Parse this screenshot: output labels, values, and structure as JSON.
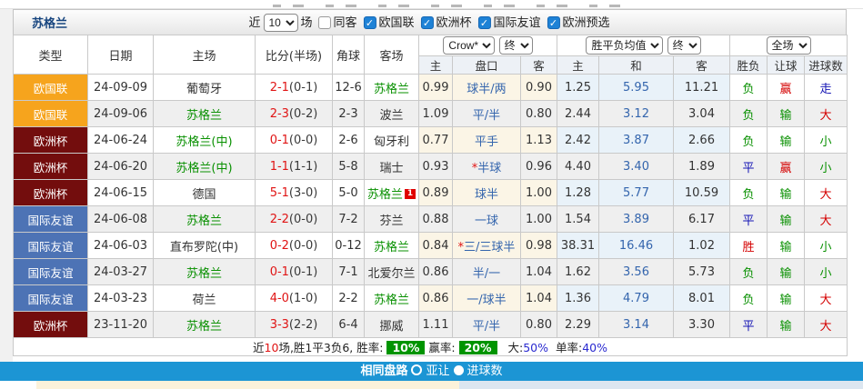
{
  "title_bar": {
    "title": "苏格兰",
    "recent_label": "近",
    "recent_value": "10",
    "matches_label": "场",
    "same_away_label": "同客",
    "filters": [
      {
        "label": "欧国联",
        "checked": true
      },
      {
        "label": "欧洲杯",
        "checked": true
      },
      {
        "label": "国际友谊",
        "checked": true
      },
      {
        "label": "欧洲预选",
        "checked": true
      }
    ]
  },
  "odds_header": {
    "company_select": "Crow*",
    "company_state": "终",
    "europe_select": "胜平负均值",
    "europe_state": "终",
    "scope_select": "全场"
  },
  "columns": {
    "type": "类型",
    "date": "日期",
    "home": "主场",
    "score": "比分(半场)",
    "corner": "角球",
    "away": "客场",
    "ah_home": "主",
    "ah_line": "盘口",
    "ah_away": "客",
    "eu_home": "主",
    "eu_draw": "和",
    "eu_away": "客",
    "result": "胜负",
    "ah_result": "让球",
    "goals": "进球数"
  },
  "league_colors": {
    "欧国联": "#f6a41d",
    "欧洲杯": "#730d0d",
    "国际友谊": "#4d73b5"
  },
  "accent_colors": {
    "footer_bar": "#1c95d4",
    "win_rate_badge": "#009400",
    "panel_left": "#fcf2da",
    "panel_right": "#dce6f0"
  },
  "rows": [
    {
      "type": "欧国联",
      "date": "24-09-09",
      "home": "葡萄牙",
      "home_green": false,
      "ft": "2-1",
      "ht": "(0-1)",
      "corner": "12-6",
      "away": "苏格兰",
      "away_green": true,
      "away_badge": "",
      "ah_home": "0.99",
      "line_star": false,
      "line": "球半/两",
      "ah_away": "0.90",
      "eu_home": "1.25",
      "eu_draw": "5.95",
      "eu_away": "11.21",
      "result": "负",
      "result_color": "green",
      "ah_result": "赢",
      "ah_result_color": "red",
      "goals": "走",
      "goals_color": "blue"
    },
    {
      "type": "欧国联",
      "date": "24-09-06",
      "home": "苏格兰",
      "home_green": true,
      "ft": "2-3",
      "ht": "(0-2)",
      "corner": "2-3",
      "away": "波兰",
      "away_green": false,
      "away_badge": "",
      "ah_home": "1.09",
      "line_star": false,
      "line": "平/半",
      "ah_away": "0.80",
      "eu_home": "2.44",
      "eu_draw": "3.12",
      "eu_away": "3.04",
      "result": "负",
      "result_color": "green",
      "ah_result": "输",
      "ah_result_color": "green",
      "goals": "大",
      "goals_color": "red"
    },
    {
      "type": "欧洲杯",
      "date": "24-06-24",
      "home": "苏格兰(中)",
      "home_green": true,
      "ft": "0-1",
      "ht": "(0-0)",
      "corner": "2-6",
      "away": "匈牙利",
      "away_green": false,
      "away_badge": "",
      "ah_home": "0.77",
      "line_star": false,
      "line": "平手",
      "ah_away": "1.13",
      "eu_home": "2.42",
      "eu_draw": "3.87",
      "eu_away": "2.66",
      "result": "负",
      "result_color": "green",
      "ah_result": "输",
      "ah_result_color": "green",
      "goals": "小",
      "goals_color": "green"
    },
    {
      "type": "欧洲杯",
      "date": "24-06-20",
      "home": "苏格兰(中)",
      "home_green": true,
      "ft": "1-1",
      "ht": "(1-1)",
      "corner": "5-8",
      "away": "瑞士",
      "away_green": false,
      "away_badge": "",
      "ah_home": "0.93",
      "line_star": true,
      "line": "半球",
      "ah_away": "0.96",
      "eu_home": "4.40",
      "eu_draw": "3.40",
      "eu_away": "1.89",
      "result": "平",
      "result_color": "blue",
      "ah_result": "赢",
      "ah_result_color": "red",
      "goals": "小",
      "goals_color": "green"
    },
    {
      "type": "欧洲杯",
      "date": "24-06-15",
      "home": "德国",
      "home_green": false,
      "ft": "5-1",
      "ht": "(3-0)",
      "corner": "5-0",
      "away": "苏格兰",
      "away_green": true,
      "away_badge": "1",
      "ah_home": "0.89",
      "line_star": false,
      "line": "球半",
      "ah_away": "1.00",
      "eu_home": "1.28",
      "eu_draw": "5.77",
      "eu_away": "10.59",
      "result": "负",
      "result_color": "green",
      "ah_result": "输",
      "ah_result_color": "green",
      "goals": "大",
      "goals_color": "red"
    },
    {
      "type": "国际友谊",
      "date": "24-06-08",
      "home": "苏格兰",
      "home_green": true,
      "ft": "2-2",
      "ht": "(0-0)",
      "corner": "7-2",
      "away": "芬兰",
      "away_green": false,
      "away_badge": "",
      "ah_home": "0.88",
      "line_star": false,
      "line": "一球",
      "ah_away": "1.00",
      "eu_home": "1.54",
      "eu_draw": "3.89",
      "eu_away": "6.17",
      "result": "平",
      "result_color": "blue",
      "ah_result": "输",
      "ah_result_color": "green",
      "goals": "大",
      "goals_color": "red"
    },
    {
      "type": "国际友谊",
      "date": "24-06-03",
      "home": "直布罗陀(中)",
      "home_green": false,
      "ft": "0-2",
      "ht": "(0-0)",
      "corner": "0-12",
      "away": "苏格兰",
      "away_green": true,
      "away_badge": "",
      "ah_home": "0.84",
      "line_star": true,
      "line": "三/三球半",
      "ah_away": "0.98",
      "eu_home": "38.31",
      "eu_draw": "16.46",
      "eu_away": "1.02",
      "result": "胜",
      "result_color": "red",
      "ah_result": "输",
      "ah_result_color": "green",
      "goals": "小",
      "goals_color": "green"
    },
    {
      "type": "国际友谊",
      "date": "24-03-27",
      "home": "苏格兰",
      "home_green": true,
      "ft": "0-1",
      "ht": "(0-1)",
      "corner": "7-1",
      "away": "北爱尔兰",
      "away_green": false,
      "away_badge": "",
      "ah_home": "0.86",
      "line_star": false,
      "line": "半/一",
      "ah_away": "1.04",
      "eu_home": "1.62",
      "eu_draw": "3.56",
      "eu_away": "5.73",
      "result": "负",
      "result_color": "green",
      "ah_result": "输",
      "ah_result_color": "green",
      "goals": "小",
      "goals_color": "green"
    },
    {
      "type": "国际友谊",
      "date": "24-03-23",
      "home": "荷兰",
      "home_green": false,
      "ft": "4-0",
      "ht": "(1-0)",
      "corner": "2-2",
      "away": "苏格兰",
      "away_green": true,
      "away_badge": "",
      "ah_home": "0.86",
      "line_star": false,
      "line": "一/球半",
      "ah_away": "1.04",
      "eu_home": "1.36",
      "eu_draw": "4.79",
      "eu_away": "8.01",
      "result": "负",
      "result_color": "green",
      "ah_result": "输",
      "ah_result_color": "green",
      "goals": "大",
      "goals_color": "red"
    },
    {
      "type": "欧洲杯",
      "date": "23-11-20",
      "home": "苏格兰",
      "home_green": true,
      "ft": "3-3",
      "ht": "(2-2)",
      "corner": "6-4",
      "away": "挪威",
      "away_green": false,
      "away_badge": "",
      "ah_home": "1.11",
      "line_star": false,
      "line": "平/半",
      "ah_away": "0.80",
      "eu_home": "2.29",
      "eu_draw": "3.14",
      "eu_away": "3.30",
      "result": "平",
      "result_color": "blue",
      "ah_result": "输",
      "ah_result_color": "green",
      "goals": "大",
      "goals_color": "red"
    }
  ],
  "summary": {
    "prefix": "近",
    "count": "10",
    "mid": "场,胜1平3负6, 胜率:",
    "win_rate": "10%",
    "mid2": "赢率:",
    "ah_win_rate": "20%",
    "big_label": "大:",
    "big_value": "50%",
    "odd_label": "单率:",
    "odd_value": "40%"
  },
  "footer": {
    "label": "相同盘路",
    "option1": "亚让",
    "option2": "进球数"
  }
}
